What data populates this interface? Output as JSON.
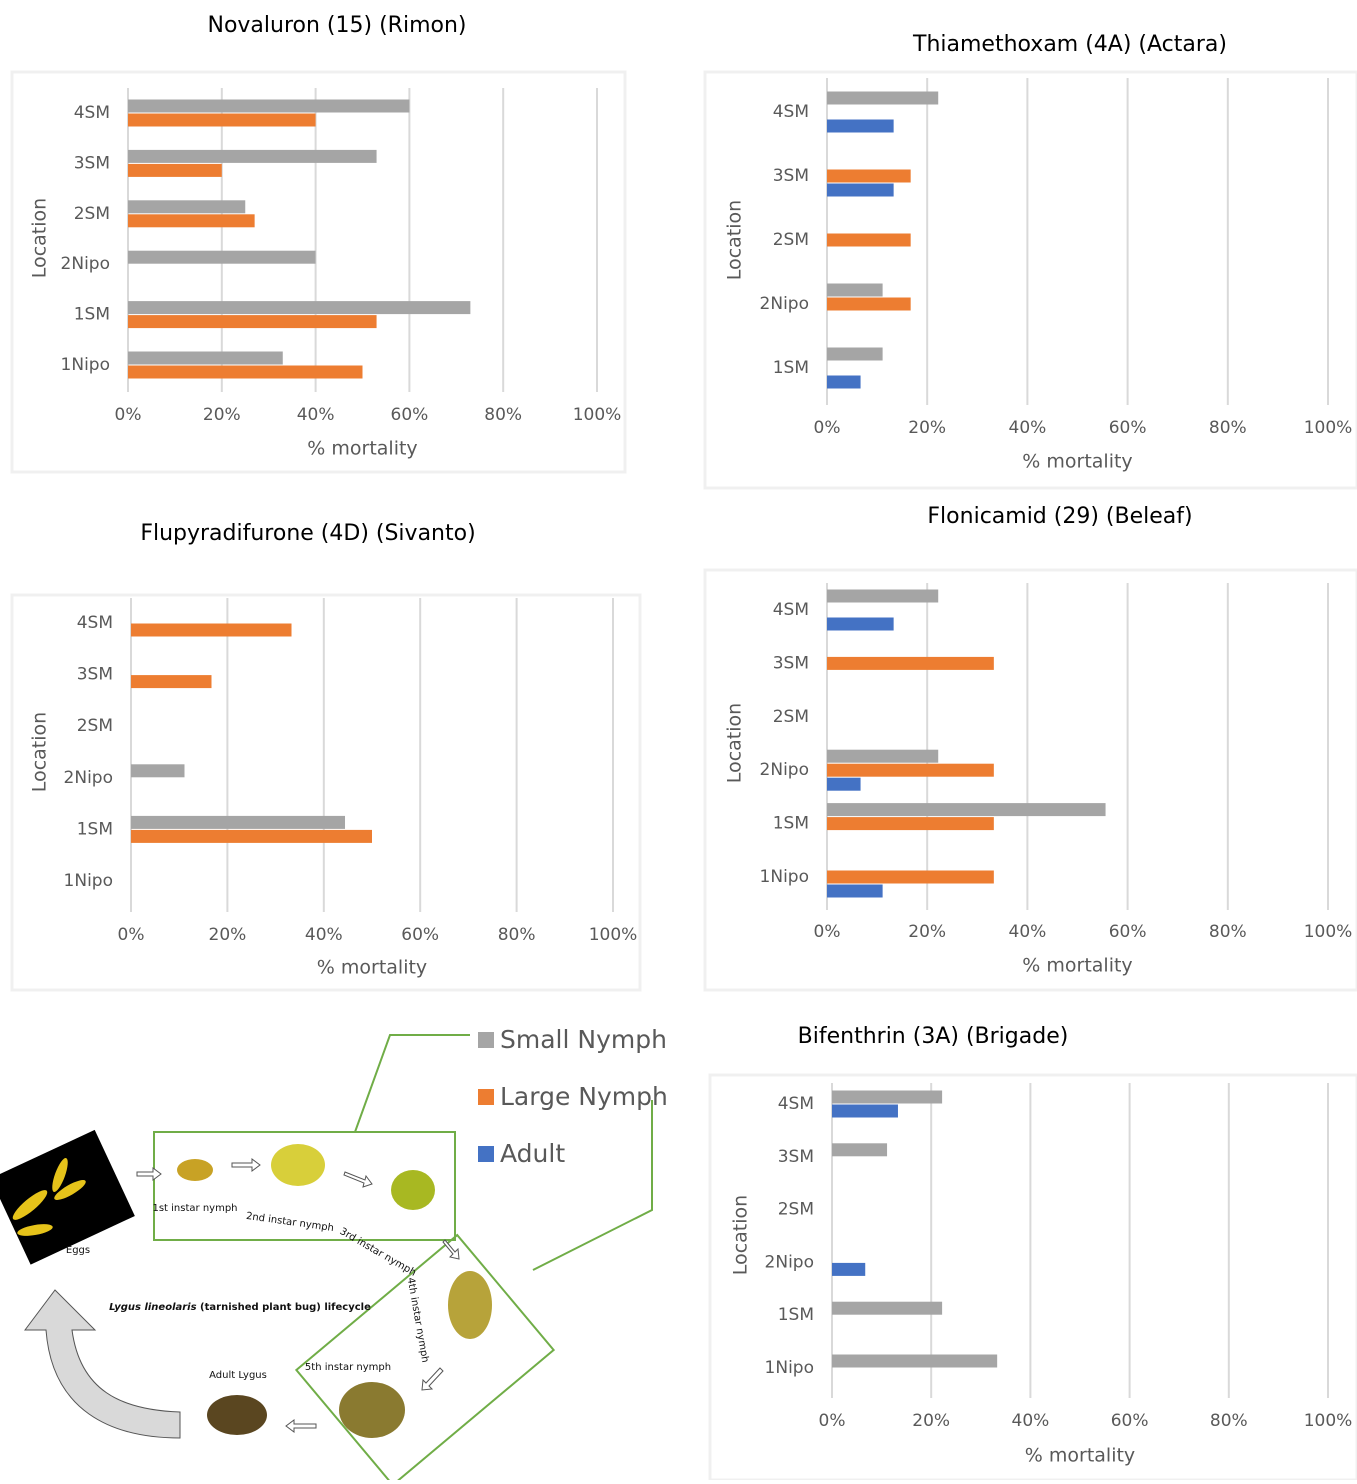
{
  "chart_data": [
    {
      "type": "hbar",
      "title": "Novaluron (15) (Rimon)",
      "x_label": "% mortality",
      "y_label": "Location",
      "categories": [
        "4SM",
        "3SM",
        "2SM",
        "2Nipo",
        "1SM",
        "1Nipo"
      ],
      "series": [
        {
          "values": [
            60,
            53,
            25,
            40,
            73,
            33
          ]
        },
        {
          "values": [
            40,
            20,
            27,
            null,
            53,
            50
          ]
        },
        {
          "values": [
            null,
            null,
            null,
            null,
            null,
            null
          ]
        }
      ],
      "xlim": [
        0,
        100
      ],
      "xticks": [
        {
          "value": 0,
          "label": "0%"
        },
        {
          "value": 20,
          "label": "20%"
        },
        {
          "value": 40,
          "label": "40%"
        },
        {
          "value": 60,
          "label": "60%"
        },
        {
          "value": 80,
          "label": "80%"
        },
        {
          "value": 100,
          "label": "100%"
        }
      ],
      "grid": true
    },
    {
      "type": "hbar",
      "title": "Thiamethoxam (4A) (Actara)",
      "x_label": "% mortality",
      "y_label": "Location",
      "categories": [
        "4SM",
        "3SM",
        "2SM",
        "2Nipo",
        "1SM"
      ],
      "series": [
        {
          "values": [
            22.2,
            null,
            null,
            11.1,
            11.1
          ]
        },
        {
          "values": [
            null,
            16.7,
            16.7,
            16.7,
            null
          ]
        },
        {
          "values": [
            13.3,
            13.3,
            null,
            null,
            6.7
          ]
        }
      ],
      "xlim": [
        0,
        100
      ],
      "xticks": [
        {
          "value": 0,
          "label": "0%"
        },
        {
          "value": 20,
          "label": "20%"
        },
        {
          "value": 40,
          "label": "40%"
        },
        {
          "value": 60,
          "label": "60%"
        },
        {
          "value": 80,
          "label": "80%"
        },
        {
          "value": 100,
          "label": "100%"
        }
      ],
      "grid": true
    },
    {
      "type": "hbar",
      "title": "Flupyradifurone (4D) (Sivanto)",
      "x_label": "% mortality",
      "y_label": "Location",
      "categories": [
        "4SM",
        "3SM",
        "2SM",
        "2Nipo",
        "1SM",
        "1Nipo"
      ],
      "series": [
        {
          "values": [
            null,
            null,
            null,
            11.1,
            44.4,
            null
          ]
        },
        {
          "values": [
            33.3,
            16.7,
            null,
            null,
            50,
            null
          ]
        },
        {
          "values": [
            null,
            null,
            null,
            null,
            null,
            null
          ]
        }
      ],
      "xlim": [
        0,
        100
      ],
      "xticks": [
        {
          "value": 0,
          "label": "0%"
        },
        {
          "value": 20,
          "label": "20%"
        },
        {
          "value": 40,
          "label": "40%"
        },
        {
          "value": 60,
          "label": "60%"
        },
        {
          "value": 80,
          "label": "80%"
        },
        {
          "value": 100,
          "label": "100%"
        }
      ],
      "grid": true
    },
    {
      "type": "hbar",
      "title": "Flonicamid (29) (Beleaf)",
      "x_label": "% mortality",
      "y_label": "Location",
      "categories": [
        "4SM",
        "3SM",
        "2SM",
        "2Nipo",
        "1SM",
        "1Nipo"
      ],
      "series": [
        {
          "values": [
            22.2,
            null,
            null,
            22.2,
            55.6,
            null
          ]
        },
        {
          "values": [
            null,
            33.3,
            null,
            33.3,
            33.3,
            33.3
          ]
        },
        {
          "values": [
            13.3,
            null,
            null,
            6.7,
            null,
            11.1
          ]
        }
      ],
      "xlim": [
        0,
        100
      ],
      "xticks": [
        {
          "value": 0,
          "label": "0%"
        },
        {
          "value": 20,
          "label": "20%"
        },
        {
          "value": 40,
          "label": "40%"
        },
        {
          "value": 60,
          "label": "60%"
        },
        {
          "value": 80,
          "label": "80%"
        },
        {
          "value": 100,
          "label": "100%"
        }
      ],
      "grid": true
    },
    {
      "type": "hbar",
      "title": "Bifenthrin (3A) (Brigade)",
      "x_label": "% mortality",
      "y_label": "Location",
      "categories": [
        "4SM",
        "3SM",
        "2SM",
        "2Nipo",
        "1SM",
        "1Nipo"
      ],
      "series": [
        {
          "values": [
            22.2,
            11.1,
            null,
            null,
            22.2,
            33.3
          ]
        },
        {
          "values": [
            null,
            null,
            null,
            null,
            null,
            null
          ]
        },
        {
          "values": [
            13.3,
            null,
            null,
            6.7,
            null,
            null
          ]
        }
      ],
      "xlim": [
        0,
        100
      ],
      "xticks": [
        {
          "value": 0,
          "label": "0%"
        },
        {
          "value": 20,
          "label": "20%"
        },
        {
          "value": 40,
          "label": "40%"
        },
        {
          "value": 60,
          "label": "60%"
        },
        {
          "value": 80,
          "label": "80%"
        },
        {
          "value": 100,
          "label": "100%"
        }
      ],
      "grid": true
    }
  ],
  "legend": [
    {
      "name": "Small Nymph",
      "color": "#a5a5a5"
    },
    {
      "name": "Large Nymph",
      "color": "#ed7d31"
    },
    {
      "name": "Adult",
      "color": "#4472c4"
    }
  ],
  "diagram": {
    "title_italic": "Lygus lineolaris",
    "title_rest": "(tarnished plant bug) lifecycle",
    "stages": [
      "Eggs",
      "1st instar nymph",
      "2nd instar nymph",
      "3rd instar nymph",
      "4th instar nymph",
      "5th instar nymph",
      "Adult Lygus"
    ]
  }
}
